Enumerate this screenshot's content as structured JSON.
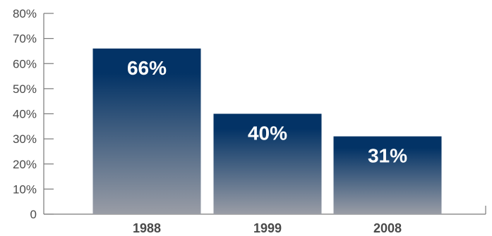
{
  "chart_data": {
    "type": "bar",
    "title": "",
    "xlabel": "",
    "ylabel": "",
    "categories": [
      "1988",
      "1999",
      "2008"
    ],
    "values": [
      66,
      40,
      31
    ],
    "data_labels": [
      "66%",
      "40%",
      "31%"
    ],
    "ylim": [
      0,
      80
    ],
    "yticks": [
      0,
      10,
      20,
      30,
      40,
      50,
      60,
      70,
      80
    ],
    "ytick_labels": [
      "0",
      "10%",
      "20%",
      "30%",
      "40%",
      "50%",
      "60%",
      "70%",
      "80%"
    ],
    "grid": false,
    "legend": "none",
    "bar_gradient_top": "#033366",
    "bar_gradient_bottom": "#9a9da6",
    "axis_color": "#7a7a7a",
    "text_color": "#4a4a4a",
    "data_label_color": "#ffffff"
  }
}
